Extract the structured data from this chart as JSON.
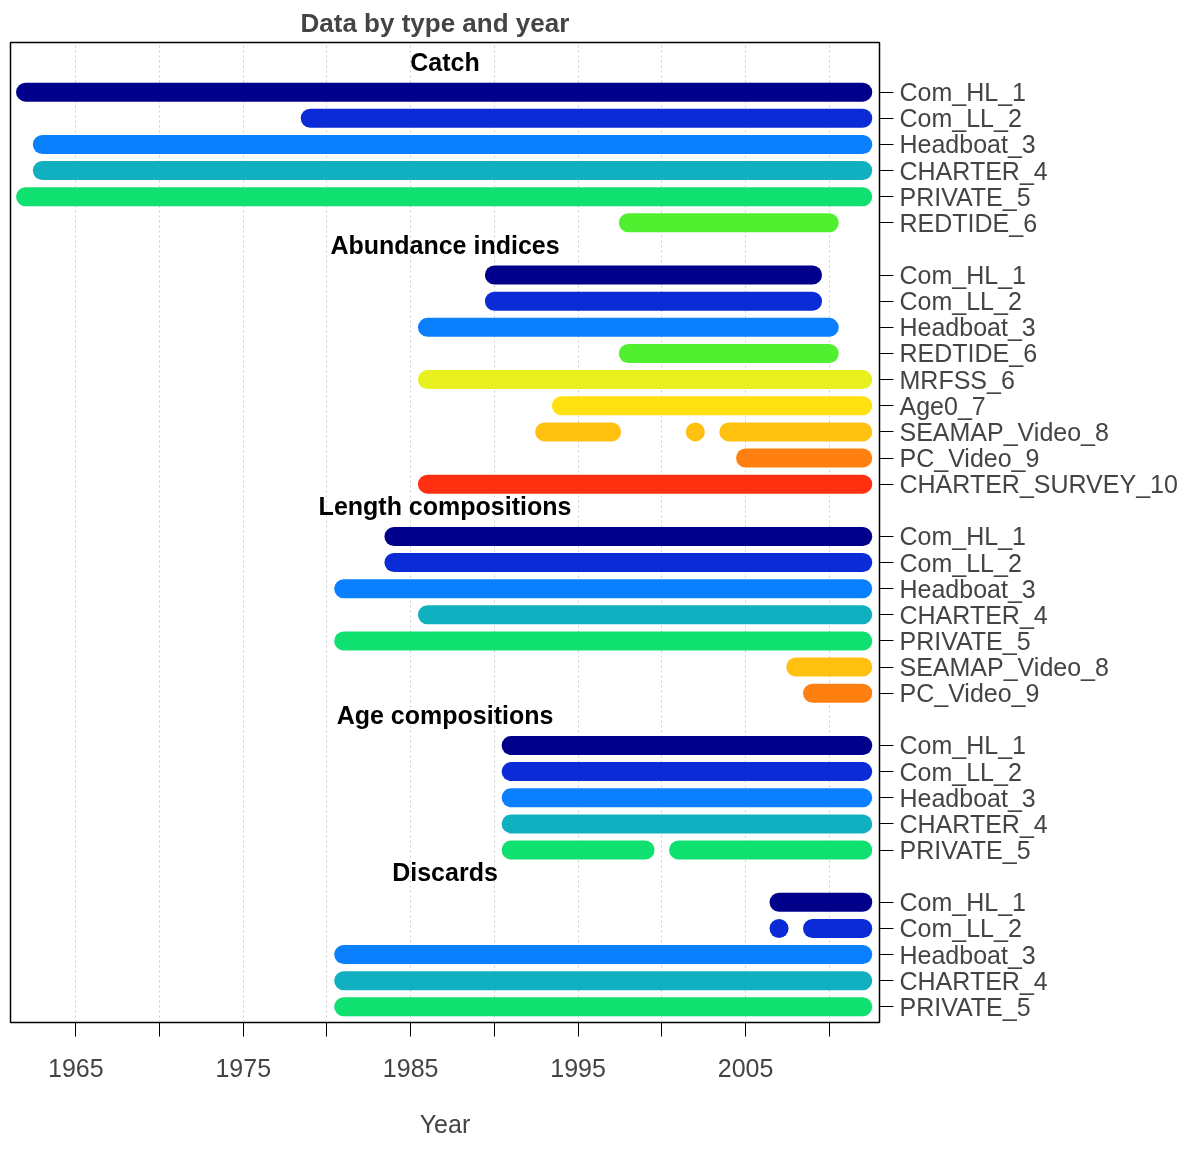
{
  "chart_data": {
    "type": "bar",
    "orientation": "horizontal",
    "title": "Data by type and year",
    "xlabel": "Year",
    "categories": [
      null,
      "Com_HL_1",
      "Com_LL_2",
      "Headboat_3",
      "CHARTER_4",
      "PRIVATE_5",
      "REDTIDE_6",
      null,
      "Com_HL_1",
      "Com_LL_2",
      "Headboat_3",
      "REDTIDE_6",
      "MRFSS_6",
      "Age0_7",
      "SEAMAP_Video_8",
      "PC_Video_9",
      "CHARTER_SURVEY_10",
      null,
      "Com_HL_1",
      "Com_LL_2",
      "Headboat_3",
      "CHARTER_4",
      "PRIVATE_5",
      "SEAMAP_Video_8",
      "PC_Video_9",
      null,
      "Com_HL_1",
      "Com_LL_2",
      "Headboat_3",
      "CHARTER_4",
      "PRIVATE_5",
      null,
      "Com_HL_1",
      "Com_LL_2",
      "Headboat_3",
      "CHARTER_4",
      "PRIVATE_5"
    ],
    "series": [
      {
        "colors": [
          null,
          "#00008b",
          "#0a2bd6",
          "#0a80ff",
          "#10b0c0",
          "#10e070",
          "#50f030",
          null,
          "#00008b",
          "#0a2bd6",
          "#0a80ff",
          "#50f030",
          "#e8f020",
          "#ffe010",
          "#ffc010",
          "#ff8010",
          "#ff3010",
          null,
          "#00008b",
          "#0a2bd6",
          "#0a80ff",
          "#10b0c0",
          "#10e070",
          "#ffc010",
          "#ff8010",
          null,
          "#00008b",
          "#0a2bd6",
          "#0a80ff",
          "#10b0c0",
          "#10e070",
          null,
          "#00008b",
          "#0a2bd6",
          "#0a80ff",
          "#10b0c0",
          "#10e070"
        ],
        "base": [
          null,
          1962,
          1979,
          1963,
          1963,
          1962,
          1998,
          null,
          1990,
          1990,
          1986,
          1998,
          1986,
          1994,
          1993,
          2005,
          1986,
          null,
          1984,
          1984,
          1981,
          1986,
          1981,
          2008,
          2009,
          null,
          1991,
          1991,
          1991,
          1991,
          1991,
          null,
          2007,
          2009,
          1981,
          1981,
          1981
        ],
        "values": [
          null,
          50,
          33,
          49,
          49,
          50,
          12,
          null,
          19,
          19,
          24,
          12,
          26,
          18,
          4,
          7,
          26,
          null,
          28,
          28,
          31,
          26,
          31,
          4,
          3,
          null,
          21,
          21,
          21,
          21,
          8,
          null,
          5,
          3,
          31,
          31,
          31
        ]
      },
      {
        "colors": [
          null,
          null,
          null,
          null,
          null,
          null,
          null,
          null,
          null,
          null,
          null,
          null,
          null,
          null,
          "#ffc010",
          null,
          null,
          null,
          null,
          null,
          null,
          null,
          null,
          null,
          null,
          null,
          null,
          null,
          null,
          null,
          "#10e070",
          null,
          null,
          null,
          null,
          null,
          null
        ],
        "base": [
          null,
          null,
          null,
          null,
          null,
          null,
          null,
          null,
          null,
          null,
          null,
          null,
          null,
          null,
          2004,
          null,
          null,
          null,
          null,
          null,
          null,
          null,
          null,
          null,
          null,
          null,
          null,
          null,
          null,
          null,
          2001,
          null,
          null,
          null,
          null,
          null,
          null
        ],
        "values": [
          null,
          null,
          null,
          null,
          null,
          null,
          null,
          null,
          null,
          null,
          null,
          null,
          null,
          null,
          8,
          null,
          null,
          null,
          null,
          null,
          null,
          null,
          null,
          null,
          null,
          null,
          null,
          null,
          null,
          null,
          11,
          null,
          null,
          null,
          null,
          null,
          null
        ]
      },
      {
        "type": "scatter",
        "marker": "circle",
        "colors": [
          null,
          null,
          null,
          null,
          null,
          null,
          null,
          null,
          null,
          null,
          null,
          null,
          null,
          null,
          "#ffc010",
          null,
          null,
          null,
          null,
          null,
          null,
          null,
          null,
          null,
          null,
          null,
          null,
          null,
          null,
          null,
          null,
          null,
          null,
          "#0a2bd6",
          null,
          null,
          null
        ],
        "values": [
          null,
          null,
          null,
          null,
          null,
          null,
          null,
          null,
          null,
          null,
          null,
          null,
          null,
          null,
          2002,
          null,
          null,
          null,
          null,
          null,
          null,
          null,
          null,
          null,
          null,
          null,
          null,
          null,
          null,
          null,
          null,
          null,
          null,
          2007,
          null,
          null,
          null
        ]
      }
    ],
    "annotations": [
      "Catch",
      "Abundance indices",
      "Length compositions",
      "Age compositions",
      "Discards"
    ],
    "xlim": [
      1961.1,
      2013
    ],
    "xticks": [
      1965,
      {
        "value": 1970,
        "label": null
      },
      1975,
      {
        "value": 1980,
        "label": null
      },
      1985,
      {
        "value": 1990,
        "label": null
      },
      1995,
      {
        "value": 2000,
        "label": null
      },
      2005,
      {
        "value": 2010,
        "label": null
      }
    ],
    "grid": "x"
  }
}
